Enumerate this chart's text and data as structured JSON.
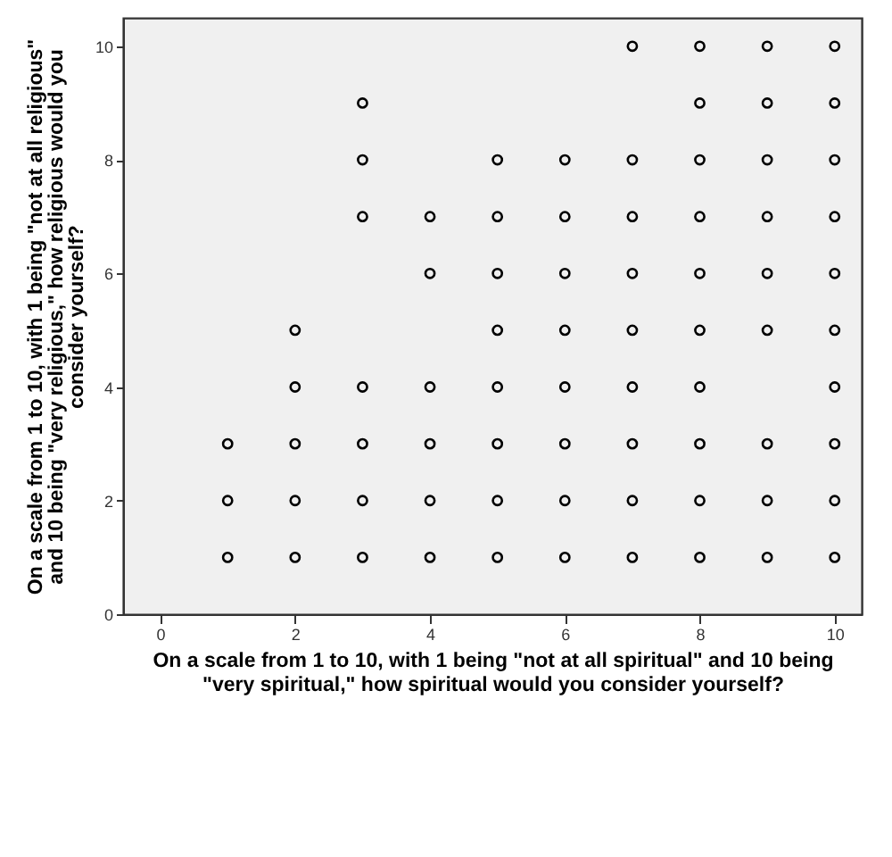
{
  "chart_data": {
    "type": "scatter",
    "xlabel": "On a scale from 1 to 10, with 1 being \"not at all spiritual\" and 10 being \"very spiritual,\" how spiritual would you consider yourself?",
    "ylabel": "On a scale from 1 to 10, with 1 being \"not at all religious\" and 10 being \"very religious,\" how religious would you consider yourself?",
    "x": [
      1,
      1,
      1,
      2,
      2,
      2,
      2,
      2,
      3,
      3,
      3,
      3,
      3,
      3,
      3,
      4,
      4,
      4,
      4,
      4,
      4,
      5,
      5,
      5,
      5,
      5,
      5,
      5,
      5,
      6,
      6,
      6,
      6,
      6,
      6,
      6,
      6,
      7,
      7,
      7,
      7,
      7,
      7,
      7,
      7,
      7,
      8,
      8,
      8,
      8,
      8,
      8,
      8,
      8,
      8,
      8,
      9,
      9,
      9,
      9,
      9,
      9,
      9,
      9,
      9,
      10,
      10,
      10,
      10,
      10,
      10,
      10,
      10,
      10,
      10
    ],
    "values": [
      1,
      2,
      3,
      1,
      2,
      3,
      4,
      5,
      1,
      2,
      3,
      4,
      7,
      8,
      9,
      1,
      2,
      3,
      4,
      6,
      7,
      1,
      2,
      3,
      4,
      5,
      6,
      7,
      8,
      1,
      2,
      3,
      4,
      5,
      6,
      7,
      8,
      1,
      2,
      3,
      4,
      5,
      6,
      7,
      8,
      10,
      1,
      2,
      3,
      4,
      5,
      6,
      7,
      8,
      9,
      10,
      1,
      2,
      3,
      5,
      6,
      7,
      8,
      9,
      10,
      1,
      2,
      3,
      4,
      5,
      6,
      7,
      8,
      9,
      10
    ],
    "color": "#000000",
    "marker": "circle",
    "grid": false,
    "xlim": [
      -0.55,
      10.4
    ],
    "ylim": [
      0,
      10.5
    ],
    "xticks": [
      0,
      2,
      4,
      6,
      8,
      10
    ],
    "yticks": [
      0,
      2,
      4,
      6,
      8,
      10
    ]
  }
}
